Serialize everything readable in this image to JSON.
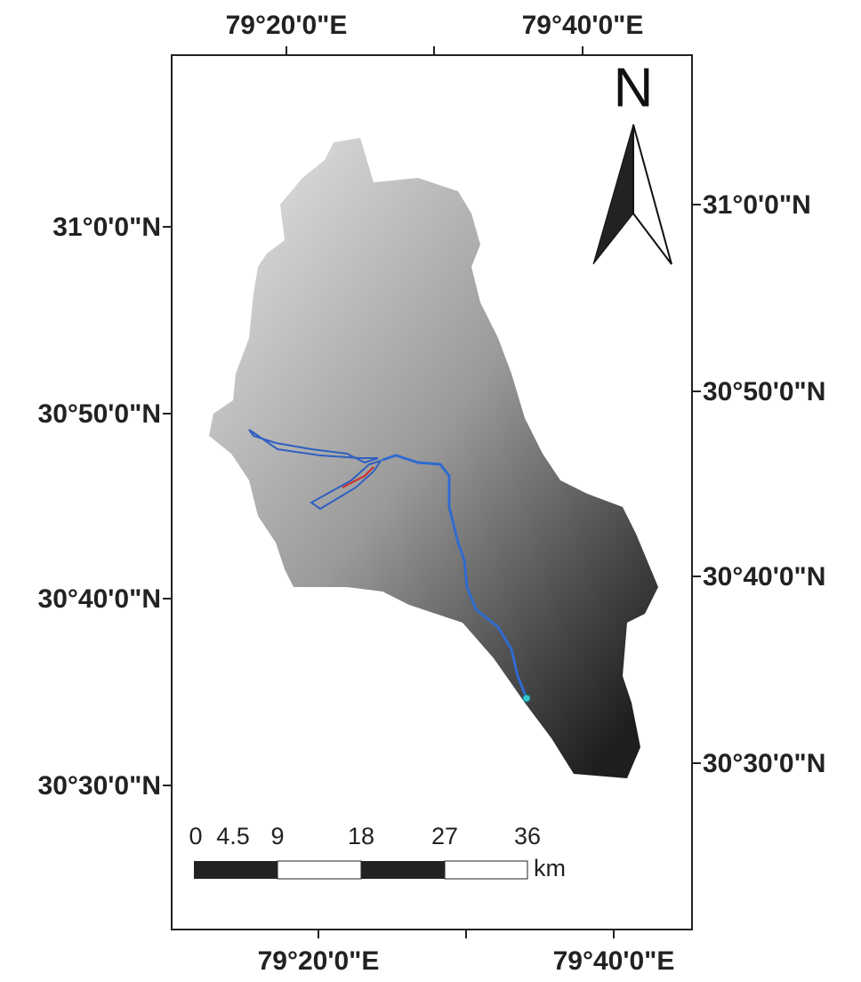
{
  "north": "N",
  "top_labels": [
    "79°20'0\"E",
    "79°40'0\"E"
  ],
  "bottom_labels": [
    "79°20'0\"E",
    "79°40'0\"E"
  ],
  "left_labels": [
    "31°0'0\"N",
    "30°50'0\"N",
    "30°40'0\"N",
    "30°30'0\"N"
  ],
  "right_labels": [
    "31°0'0\"N",
    "30°50'0\"N",
    "30°40'0\"N",
    "30°30'0\"N"
  ],
  "scale": {
    "labels": [
      "0",
      "4.5",
      "9",
      "18",
      "27",
      "36"
    ],
    "unit": "km"
  }
}
